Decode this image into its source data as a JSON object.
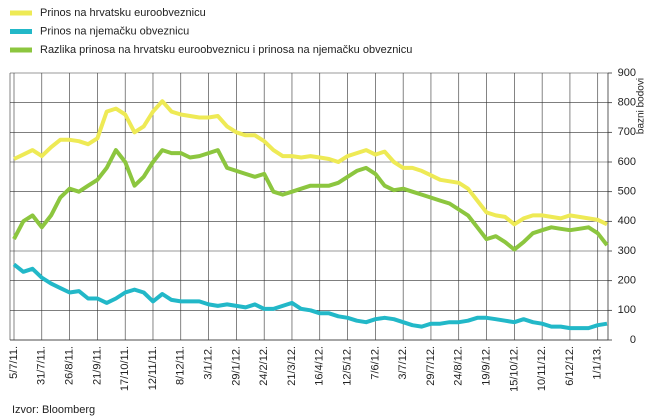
{
  "chart_data": {
    "type": "line",
    "legend": "top-left",
    "y_label": "bazni bodovi",
    "source": "Izvor: Bloomberg",
    "grid": true,
    "categories": [
      "5/7/11.",
      null,
      null,
      "31/7/11.",
      null,
      null,
      "26/8/11.",
      null,
      null,
      "21/9/11.",
      null,
      null,
      "17/10/11.",
      null,
      null,
      "12/11/11.",
      null,
      null,
      "8/12/11.",
      null,
      null,
      "3/1/12.",
      null,
      null,
      "29/1/12.",
      null,
      null,
      "24/2/12.",
      null,
      null,
      "21/3/12.",
      null,
      null,
      "16/4/12.",
      null,
      null,
      "12/5/12.",
      null,
      null,
      "7/6/12.",
      null,
      null,
      "3/7/12.",
      null,
      null,
      "29/7/12.",
      null,
      null,
      "24/8/12.",
      null,
      null,
      "19/9/12.",
      null,
      null,
      "15/10/12.",
      null,
      null,
      "10/11/12.",
      null,
      null,
      "6/12/12.",
      null,
      null,
      "1/1/13.",
      null
    ],
    "ylim": [
      0,
      900
    ],
    "yticks": [
      0,
      100,
      200,
      300,
      400,
      500,
      600,
      700,
      800,
      900
    ],
    "series": [
      {
        "name": "Prinos na hrvatsku euroobveznicu",
        "color": "#eeea55",
        "values": [
          610,
          625,
          640,
          620,
          650,
          675,
          675,
          670,
          660,
          680,
          770,
          780,
          760,
          700,
          720,
          770,
          805,
          770,
          760,
          755,
          750,
          750,
          755,
          720,
          700,
          690,
          690,
          670,
          640,
          620,
          620,
          615,
          620,
          615,
          610,
          600,
          620,
          630,
          640,
          625,
          635,
          600,
          580,
          580,
          570,
          555,
          540,
          535,
          530,
          510,
          470,
          430,
          420,
          415,
          390,
          410,
          420,
          420,
          415,
          410,
          420,
          415,
          410,
          405,
          390
        ]
      },
      {
        "name": "Prinos na njemačku obveznicu",
        "color": "#22b8c8",
        "values": [
          255,
          230,
          240,
          210,
          190,
          175,
          160,
          165,
          140,
          140,
          125,
          140,
          160,
          170,
          160,
          130,
          155,
          135,
          130,
          130,
          130,
          120,
          115,
          120,
          115,
          110,
          120,
          105,
          105,
          115,
          125,
          105,
          100,
          90,
          90,
          80,
          75,
          65,
          60,
          70,
          75,
          70,
          60,
          50,
          45,
          55,
          55,
          60,
          60,
          65,
          75,
          75,
          70,
          65,
          60,
          70,
          60,
          55,
          45,
          45,
          40,
          40,
          40,
          50,
          55
        ]
      },
      {
        "name": "Razlika prinosa na hrvatsku euroobveznicu i prinosa na njemačku obveznicu",
        "color": "#8cc63f",
        "values": [
          340,
          400,
          420,
          380,
          420,
          480,
          510,
          500,
          520,
          540,
          580,
          640,
          600,
          520,
          550,
          600,
          640,
          630,
          630,
          615,
          620,
          630,
          640,
          580,
          570,
          560,
          550,
          560,
          500,
          490,
          500,
          510,
          520,
          520,
          520,
          530,
          550,
          570,
          580,
          560,
          520,
          505,
          510,
          500,
          490,
          480,
          470,
          460,
          440,
          420,
          380,
          340,
          350,
          330,
          305,
          330,
          360,
          370,
          380,
          375,
          370,
          375,
          380,
          360,
          320
        ]
      }
    ]
  }
}
